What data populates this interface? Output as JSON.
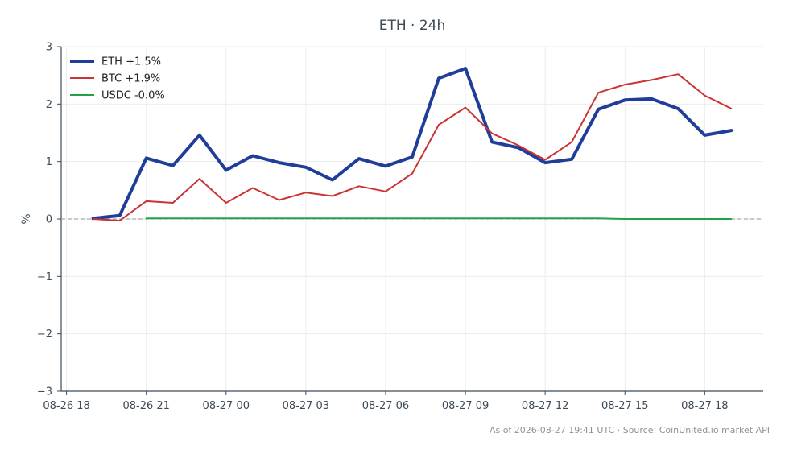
{
  "chart_data": {
    "type": "line",
    "title": "ETH · 24h",
    "ylabel": "%",
    "xlabel": "",
    "ylim": [
      -3,
      3
    ],
    "y_ticks": [
      "3",
      "2",
      "1",
      "0",
      "−1",
      "−2",
      "−3"
    ],
    "x_ticks": [
      "08-26 18",
      "08-26 21",
      "08-27 00",
      "08-27 03",
      "08-27 06",
      "08-27 09",
      "08-27 12",
      "08-27 15",
      "08-27 18"
    ],
    "x_tick_hours": [
      18,
      21,
      24,
      27,
      30,
      33,
      36,
      39,
      42
    ],
    "xlim_hours": [
      17.8,
      44.2
    ],
    "grid": true,
    "zero_reference_line": true,
    "legend_position": "top-left",
    "series": [
      {
        "name": "ETH +1.5%",
        "color": "#1f3d99",
        "x_hours": [
          19,
          20,
          21,
          22,
          23,
          24,
          25,
          26,
          27,
          28,
          29,
          30,
          31,
          32,
          33,
          34,
          35,
          36,
          37,
          38,
          39,
          40,
          41,
          42,
          43
        ],
        "values": [
          0.01,
          0.06,
          1.06,
          0.93,
          1.46,
          0.85,
          1.1,
          0.98,
          0.9,
          0.68,
          1.05,
          0.92,
          1.08,
          2.45,
          2.62,
          1.34,
          1.24,
          0.98,
          1.04,
          1.91,
          2.07,
          2.09,
          1.92,
          1.46,
          1.54
        ]
      },
      {
        "name": "BTC +1.9%",
        "color": "#cc3333",
        "x_hours": [
          19,
          20,
          21,
          22,
          23,
          24,
          25,
          26,
          27,
          28,
          29,
          30,
          31,
          32,
          33,
          34,
          35,
          36,
          37,
          38,
          39,
          40,
          41,
          42,
          43
        ],
        "values": [
          0.0,
          -0.03,
          0.31,
          0.28,
          0.7,
          0.28,
          0.54,
          0.33,
          0.46,
          0.4,
          0.57,
          0.48,
          0.79,
          1.64,
          1.94,
          1.49,
          1.28,
          1.03,
          1.34,
          2.2,
          2.34,
          2.42,
          2.52,
          2.15,
          1.92
        ]
      },
      {
        "name": "USDC -0.0%",
        "color": "#22a34a",
        "x_hours": [
          21,
          22,
          23,
          24,
          25,
          26,
          27,
          28,
          29,
          30,
          31,
          32,
          33,
          34,
          35,
          36,
          37,
          38,
          39,
          40,
          41,
          42,
          43
        ],
        "values": [
          0.01,
          0.01,
          0.01,
          0.01,
          0.01,
          0.01,
          0.01,
          0.01,
          0.01,
          0.01,
          0.01,
          0.01,
          0.01,
          0.01,
          0.01,
          0.01,
          0.01,
          0.01,
          0.0,
          0.0,
          0.0,
          0.0,
          0.0
        ]
      }
    ],
    "footer": "As of 2026-08-27 19:41 UTC · Source: CoinUnited.io market API"
  }
}
